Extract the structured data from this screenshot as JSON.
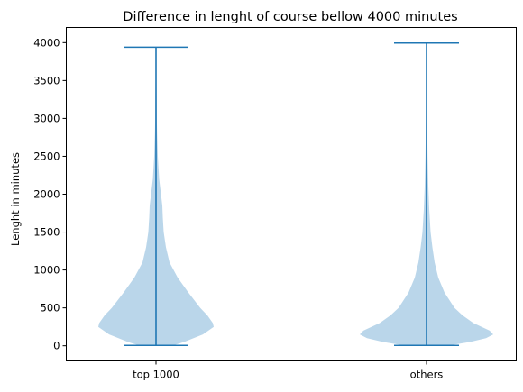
{
  "chart_data": {
    "type": "violin",
    "title": "Difference in lenght of course bellow 4000 minutes",
    "xlabel": "",
    "ylabel": "Lenght in minutes",
    "categories": [
      "top 1000",
      "others"
    ],
    "ylim": [
      -200,
      4200
    ],
    "yticks": [
      0,
      500,
      1000,
      1500,
      2000,
      2500,
      3000,
      3500,
      4000
    ],
    "grid": false,
    "legend": "none",
    "colors": {
      "body": "#bad6ea",
      "lines": "#1f77b4"
    },
    "series": [
      {
        "category": "top 1000",
        "min": 5,
        "max": 3940,
        "density": [
          [
            5,
            0.19
          ],
          [
            50,
            0.31
          ],
          [
            150,
            0.52
          ],
          [
            250,
            0.64
          ],
          [
            300,
            0.63
          ],
          [
            400,
            0.57
          ],
          [
            500,
            0.49
          ],
          [
            700,
            0.36
          ],
          [
            900,
            0.24
          ],
          [
            1100,
            0.15
          ],
          [
            1300,
            0.11
          ],
          [
            1500,
            0.085
          ],
          [
            1700,
            0.075
          ],
          [
            1850,
            0.07
          ],
          [
            2000,
            0.055
          ],
          [
            2200,
            0.035
          ],
          [
            2500,
            0.02
          ],
          [
            2800,
            0.012
          ],
          [
            3000,
            0.009
          ],
          [
            3300,
            0.007
          ],
          [
            3600,
            0.004
          ],
          [
            3800,
            0.002
          ],
          [
            3940,
            0.0
          ]
        ]
      },
      {
        "category": "others",
        "min": 5,
        "max": 3995,
        "density": [
          [
            5,
            0.25
          ],
          [
            50,
            0.48
          ],
          [
            100,
            0.66
          ],
          [
            150,
            0.74
          ],
          [
            200,
            0.7
          ],
          [
            300,
            0.52
          ],
          [
            400,
            0.4
          ],
          [
            500,
            0.31
          ],
          [
            700,
            0.2
          ],
          [
            900,
            0.13
          ],
          [
            1100,
            0.09
          ],
          [
            1300,
            0.065
          ],
          [
            1500,
            0.045
          ],
          [
            1800,
            0.03
          ],
          [
            2100,
            0.02
          ],
          [
            2500,
            0.012
          ],
          [
            3000,
            0.006
          ],
          [
            3500,
            0.003
          ],
          [
            3995,
            0.0
          ]
        ]
      }
    ]
  }
}
